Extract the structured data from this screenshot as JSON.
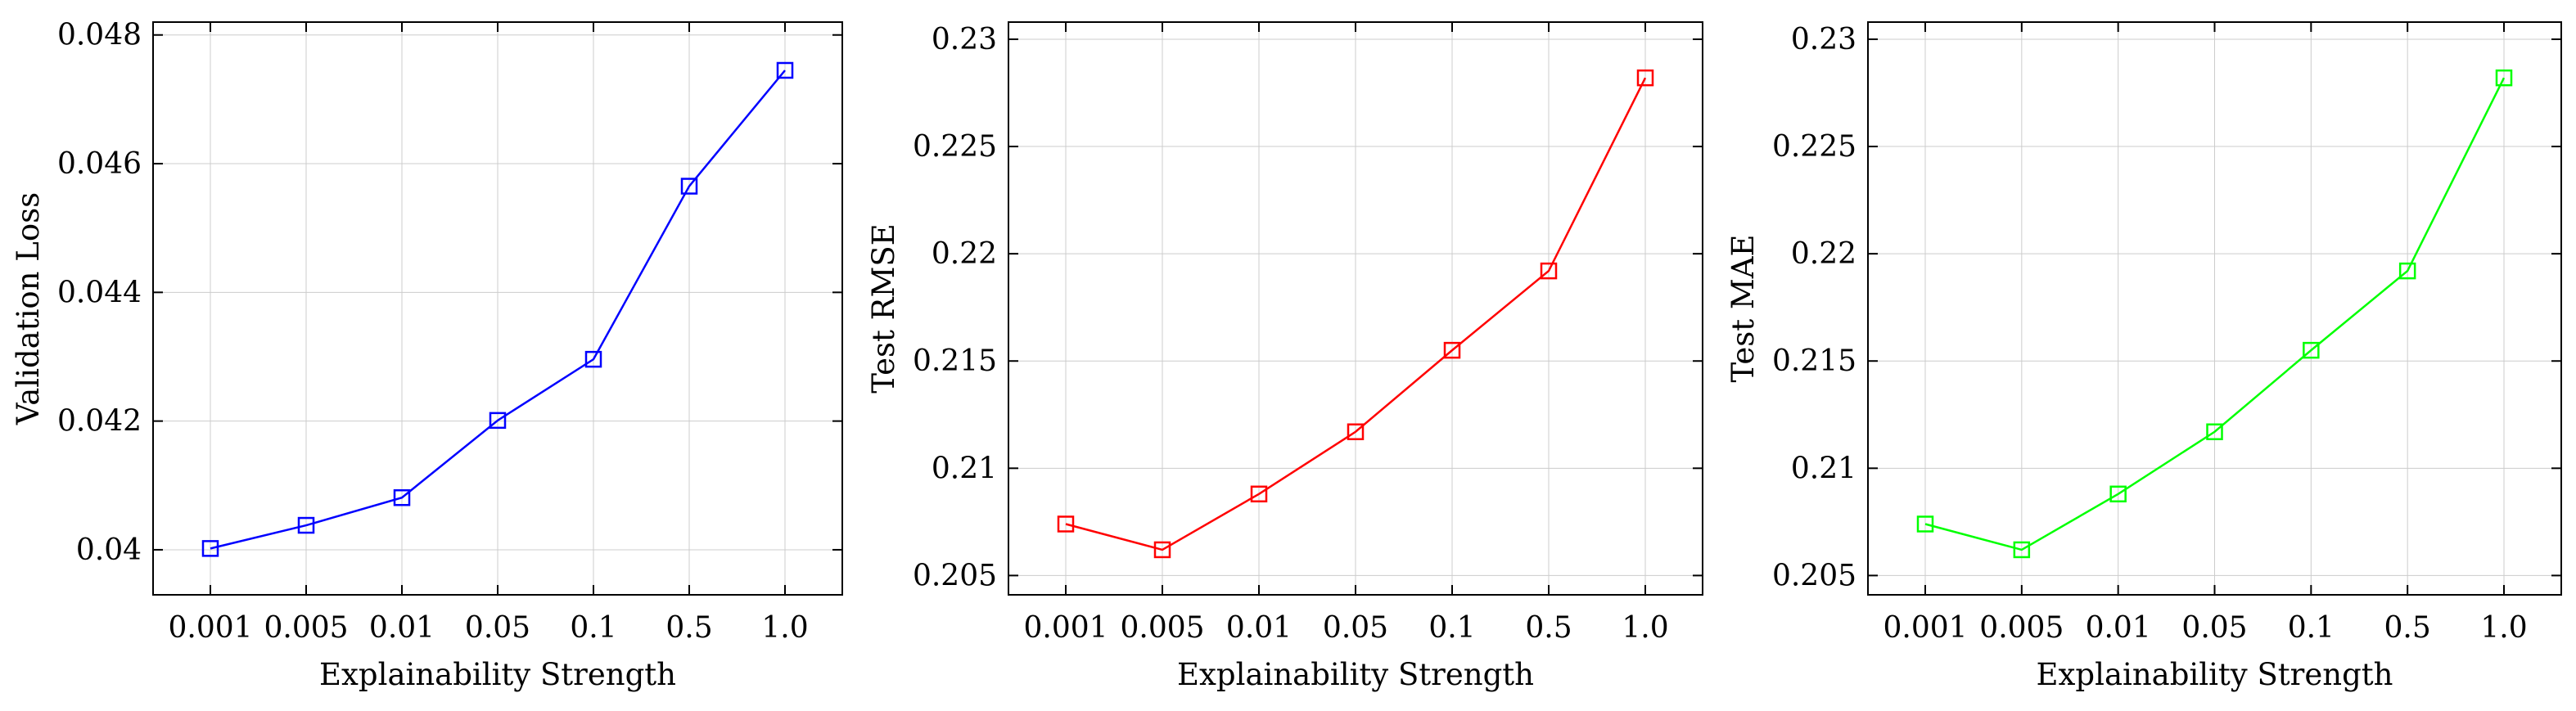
{
  "chart_data": [
    {
      "type": "line",
      "title": "",
      "xlabel": "Explainability Strength",
      "ylabel": "Validation Loss",
      "categories": [
        "0.001",
        "0.005",
        "0.01",
        "0.05",
        "0.1",
        "0.5",
        "1.0"
      ],
      "series": [
        {
          "color": "#0000ff",
          "marker": "square",
          "values": [
            0.04002,
            0.04038,
            0.04081,
            0.04201,
            0.04296,
            0.04565,
            0.04745
          ]
        }
      ],
      "ylim": [
        0.0393,
        0.0482
      ],
      "yticks": [
        0.04,
        0.042,
        0.044,
        0.046,
        0.048
      ],
      "ytick_labels": [
        "0.04",
        "0.042",
        "0.044",
        "0.046",
        "0.048"
      ],
      "grid": true,
      "legend": "none"
    },
    {
      "type": "line",
      "title": "",
      "xlabel": "Explainability Strength",
      "ylabel": "Test RMSE",
      "categories": [
        "0.001",
        "0.005",
        "0.01",
        "0.05",
        "0.1",
        "0.5",
        "1.0"
      ],
      "series": [
        {
          "color": "#ff0000",
          "marker": "square",
          "values": [
            0.2074,
            0.2062,
            0.2088,
            0.2117,
            0.2155,
            0.2192,
            0.2282
          ]
        }
      ],
      "ylim": [
        0.2041,
        0.2308
      ],
      "yticks": [
        0.205,
        0.21,
        0.215,
        0.22,
        0.225,
        0.23
      ],
      "ytick_labels": [
        "0.205",
        "0.21",
        "0.215",
        "0.22",
        "0.225",
        "0.23"
      ],
      "grid": true,
      "legend": "none"
    },
    {
      "type": "line",
      "title": "",
      "xlabel": "Explainability Strength",
      "ylabel": "Test MAE",
      "categories": [
        "0.001",
        "0.005",
        "0.01",
        "0.05",
        "0.1",
        "0.5",
        "1.0"
      ],
      "series": [
        {
          "color": "#00ff00",
          "marker": "square",
          "values": [
            0.2074,
            0.2062,
            0.2088,
            0.2117,
            0.2155,
            0.2192,
            0.2282
          ]
        }
      ],
      "ylim": [
        0.2041,
        0.2308
      ],
      "yticks": [
        0.205,
        0.21,
        0.215,
        0.22,
        0.225,
        0.23
      ],
      "ytick_labels": [
        "0.205",
        "0.21",
        "0.215",
        "0.22",
        "0.225",
        "0.23"
      ],
      "grid": true,
      "legend": "none"
    }
  ]
}
